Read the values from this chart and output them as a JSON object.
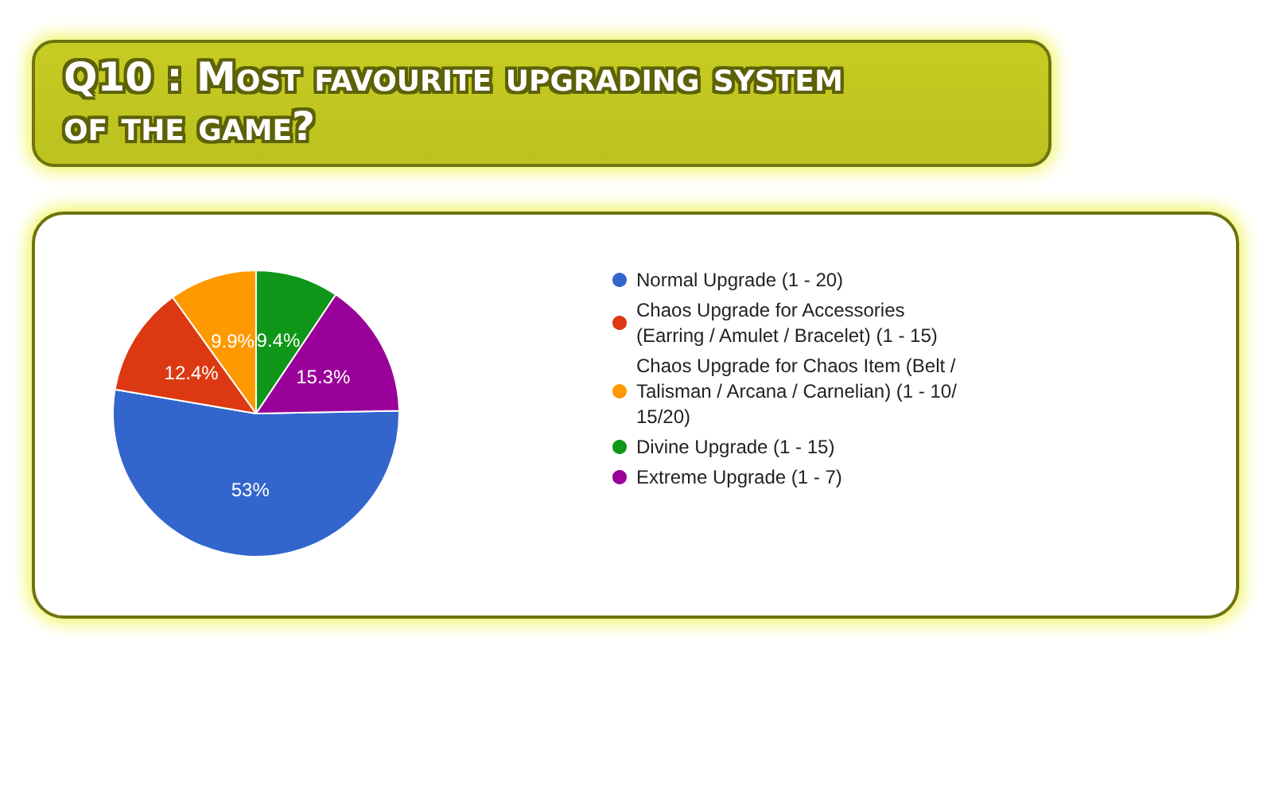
{
  "chart_data": {
    "type": "pie",
    "title": "Q10 : Most favourite upgrading system of the game?",
    "categories": [
      "Normal Upgrade (1 - 20)",
      "Chaos Upgrade for Accessories (Earring / Amulet / Bracelet) (1 - 15)",
      "Chaos Upgrade for Chaos Item (Belt / Talisman / Arcana / Carnelian) (1 - 10/15/20)",
      "Divine Upgrade (1 - 15)",
      "Extreme Upgrade (1 - 7)"
    ],
    "values": [
      53,
      12.4,
      9.9,
      9.4,
      15.3
    ],
    "colors": [
      "#3366cc",
      "#dc3912",
      "#ff9900",
      "#109618",
      "#990099"
    ],
    "value_labels": [
      "53%",
      "12.4%",
      "9.9%",
      "9.4%",
      "15.3%"
    ],
    "legend": "right"
  }
}
